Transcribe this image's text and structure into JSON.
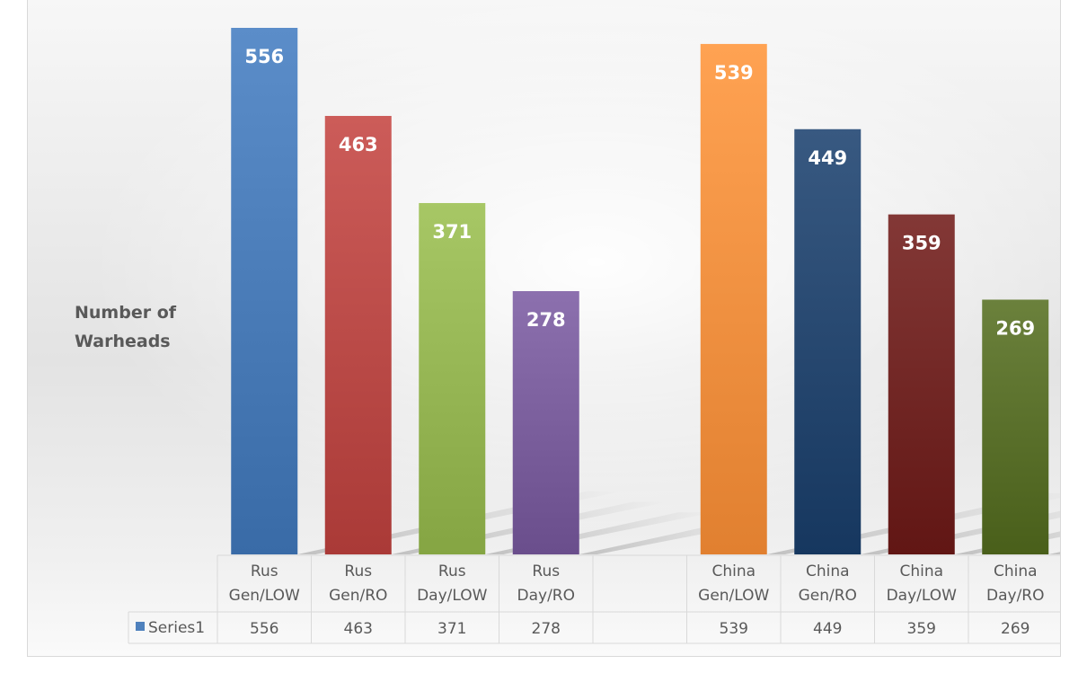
{
  "chart_data": {
    "type": "bar",
    "ylabel": "Number of\nWarheads",
    "categories": [
      [
        "Rus",
        "Gen/LOW"
      ],
      [
        "Rus",
        "Gen/RO"
      ],
      [
        "Rus",
        "Day/LOW"
      ],
      [
        "Rus",
        "Day/RO"
      ],
      [
        "",
        ""
      ],
      [
        "China",
        "Gen/LOW"
      ],
      [
        "China",
        "Gen/RO"
      ],
      [
        "China",
        "Day/LOW"
      ],
      [
        "China",
        "Day/RO"
      ]
    ],
    "series": [
      {
        "name": "Series1",
        "values": [
          556,
          463,
          371,
          278,
          null,
          539,
          449,
          359,
          269
        ]
      }
    ],
    "bar_colors": [
      "#4f81bd",
      "#c0504d",
      "#9bbb59",
      "#8064a2",
      null,
      "#f79646",
      "#2c4d75",
      "#772c2a",
      "#5f7530"
    ],
    "legend_color": "#4f81bd",
    "ylim": [
      0,
      570
    ],
    "data_labels": true,
    "data_table": true,
    "grid": false
  }
}
